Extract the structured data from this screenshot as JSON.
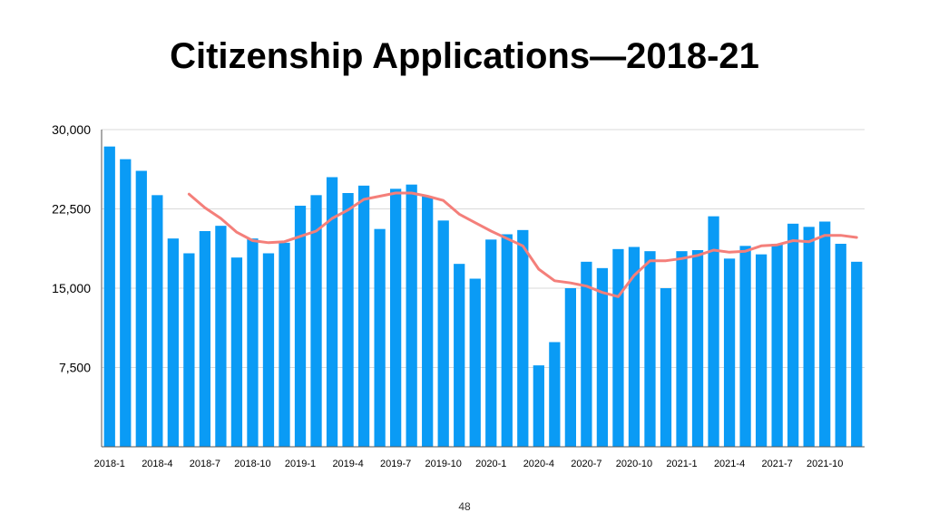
{
  "slide": {
    "title": "Citizenship Applications—2018-21",
    "page_number": "48"
  },
  "colors": {
    "bar": "#0A9BF5",
    "trend_line": "#F47F7A",
    "grid": "#D9D9D9",
    "axis": "#555555"
  },
  "chart_data": {
    "type": "bar",
    "title": "Citizenship Applications—2018-21",
    "xlabel": "",
    "ylabel": "",
    "ylim": [
      0,
      30000
    ],
    "grid": true,
    "y_ticks": [
      7500,
      15000,
      22500,
      30000
    ],
    "y_tick_labels": [
      "7,500",
      "15,000",
      "22,500",
      "30,000"
    ],
    "categories": [
      "2018-1",
      "2018-2",
      "2018-3",
      "2018-4",
      "2018-5",
      "2018-6",
      "2018-7",
      "2018-8",
      "2018-9",
      "2018-10",
      "2018-11",
      "2018-12",
      "2019-1",
      "2019-2",
      "2019-3",
      "2019-4",
      "2019-5",
      "2019-6",
      "2019-7",
      "2019-8",
      "2019-9",
      "2019-10",
      "2019-11",
      "2019-12",
      "2020-1",
      "2020-2",
      "2020-3",
      "2020-4",
      "2020-5",
      "2020-6",
      "2020-7",
      "2020-8",
      "2020-9",
      "2020-10",
      "2020-11",
      "2020-12",
      "2021-1",
      "2021-2",
      "2021-3",
      "2021-4",
      "2021-5",
      "2021-6",
      "2021-7",
      "2021-8",
      "2021-9",
      "2021-10",
      "2021-11",
      "2021-12"
    ],
    "x_tick_labels": [
      "2018-1",
      "2018-4",
      "2018-7",
      "2018-10",
      "2019-1",
      "2019-4",
      "2019-7",
      "2019-10",
      "2020-1",
      "2020-4",
      "2020-7",
      "2020-10",
      "2021-1",
      "2021-4",
      "2021-7",
      "2021-10"
    ],
    "series": [
      {
        "type": "bar",
        "values": [
          28400,
          27200,
          26100,
          23800,
          19700,
          18300,
          20400,
          20900,
          17900,
          19700,
          18300,
          19300,
          22800,
          23800,
          25500,
          24000,
          24700,
          20600,
          24400,
          24800,
          23700,
          21400,
          17300,
          15900,
          19600,
          20100,
          20500,
          7700,
          9900,
          15000,
          17500,
          16900,
          18700,
          18900,
          18500,
          15000,
          18500,
          18600,
          21800,
          17800,
          19000,
          18200,
          19200,
          21100,
          20800,
          21300,
          19200,
          17500
        ]
      },
      {
        "type": "line",
        "values": [
          null,
          null,
          null,
          null,
          null,
          23900,
          22600,
          21600,
          20300,
          19500,
          19300,
          19400,
          19900,
          20400,
          21600,
          22400,
          23400,
          23700,
          24000,
          24000,
          23700,
          23300,
          22000,
          21200,
          20400,
          19700,
          19000,
          16800,
          15700,
          15500,
          15200,
          14600,
          14200,
          16200,
          17600,
          17600,
          17800,
          18100,
          18600,
          18400,
          18500,
          19000,
          19100,
          19500,
          19400,
          20000,
          20000,
          19800
        ]
      }
    ]
  }
}
